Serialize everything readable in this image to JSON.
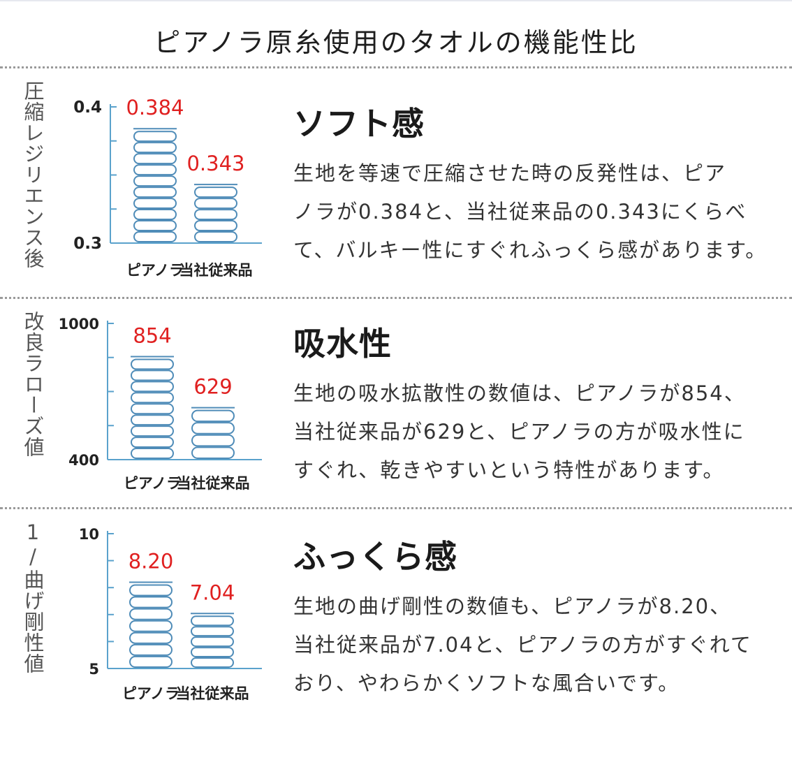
{
  "title": "ピアノラ原糸使用のタオルの機能性比",
  "colors": {
    "axis": "#5aa2cc",
    "bar": "#4f8cb8",
    "value_label": "#e02020",
    "divider": "#9a9a9a"
  },
  "sections": [
    {
      "ylabel": "圧縮レジリエンス後",
      "heading": "ソフト感",
      "description": "生地を等速で圧縮させた時の反発性は、ピア\nノラが0.384と、当社従来品の0.343にくらべ\nて、バルキー性にすぐれふっくら感があります。"
    },
    {
      "ylabel": "改良ラローズ値",
      "heading": "吸水性",
      "description": "生地の吸水拡散性の数値は、ピアノラが854、\n当社従来品が629と、ピアノラの方が吸水性に\nすぐれ、乾きやすいという特性があります。"
    },
    {
      "ylabel": "1/曲げ剛性値",
      "heading": "ふっくら感",
      "description": "生地の曲げ剛性の数値も、ピアノラが8.20、\n当社従来品が7.04と、ピアノラの方がすぐれて\nおり、やわらかくソフトな風合いです。"
    }
  ],
  "chart_data": [
    {
      "type": "bar",
      "categories": [
        "ピアノラ",
        "当社従来品"
      ],
      "values": [
        0.384,
        0.343
      ],
      "value_labels": [
        "0.384",
        "0.343"
      ],
      "ylim": [
        0.3,
        0.4
      ],
      "ytick_labels": [
        "0.4",
        "0.3"
      ],
      "yticks": [
        0.3,
        0.325,
        0.35,
        0.375,
        0.4
      ],
      "ylabel": "圧縮レジリエンス後",
      "grid": false
    },
    {
      "type": "bar",
      "categories": [
        "ピアノラ",
        "当社従来品"
      ],
      "values": [
        854,
        629
      ],
      "value_labels": [
        "854",
        "629"
      ],
      "ylim": [
        400,
        1000
      ],
      "ytick_labels": [
        "1000",
        "400"
      ],
      "yticks": [
        400,
        550,
        700,
        850,
        1000
      ],
      "ylabel": "改良ラローズ値",
      "grid": false
    },
    {
      "type": "bar",
      "categories": [
        "ピアノラ",
        "当社従来品"
      ],
      "values": [
        8.2,
        7.04
      ],
      "value_labels": [
        "8.20",
        "7.04"
      ],
      "ylim": [
        5,
        10
      ],
      "ytick_labels": [
        "10",
        "5"
      ],
      "yticks": [
        5,
        6,
        7,
        8,
        9,
        10
      ],
      "ylabel": "1/曲げ剛性値",
      "grid": false
    }
  ]
}
